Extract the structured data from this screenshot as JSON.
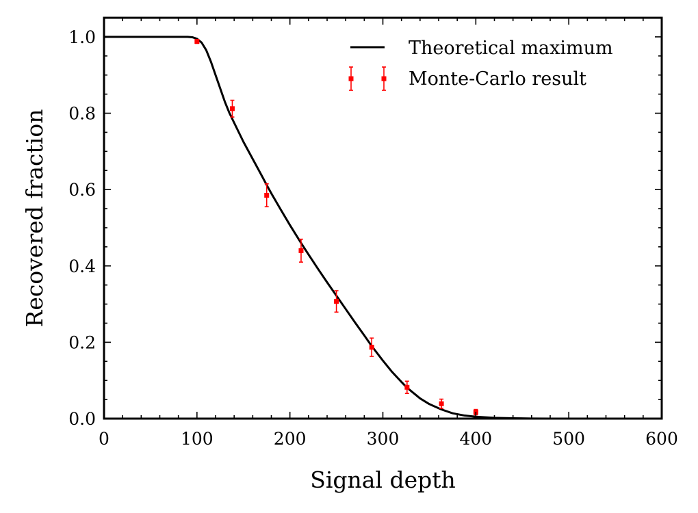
{
  "chart_data": {
    "type": "line",
    "title": "",
    "xlabel": "Signal depth",
    "ylabel": "Recovered fraction",
    "xlim": [
      0,
      600
    ],
    "ylim": [
      0,
      1.05
    ],
    "x_ticks": [
      0,
      100,
      200,
      300,
      400,
      500,
      600
    ],
    "x_tick_labels": [
      "0",
      "100",
      "200",
      "300",
      "400",
      "500",
      "600"
    ],
    "y_ticks": [
      0.0,
      0.2,
      0.4,
      0.6,
      0.8,
      1.0
    ],
    "y_tick_labels": [
      "0.0",
      "0.2",
      "0.4",
      "0.6",
      "0.8",
      "1.0"
    ],
    "grid": false,
    "legend_position": "top-right",
    "series": [
      {
        "name": "Theoretical maximum",
        "kind": "line",
        "color": "#000000",
        "x": [
          0,
          50,
          90,
          95,
          100,
          105,
          110,
          115,
          120,
          125,
          130,
          135,
          140,
          150,
          160,
          170,
          175,
          180,
          190,
          200,
          212,
          220,
          230,
          240,
          250,
          260,
          270,
          280,
          288,
          300,
          310,
          320,
          326,
          340,
          350,
          363,
          375,
          388,
          400,
          420,
          440,
          460,
          480,
          500,
          550,
          600
        ],
        "y": [
          1.0,
          1.0,
          1.0,
          0.999,
          0.995,
          0.985,
          0.965,
          0.935,
          0.9,
          0.865,
          0.83,
          0.8,
          0.775,
          0.725,
          0.68,
          0.635,
          0.612,
          0.59,
          0.548,
          0.507,
          0.46,
          0.43,
          0.393,
          0.357,
          0.322,
          0.287,
          0.252,
          0.218,
          0.19,
          0.152,
          0.122,
          0.096,
          0.081,
          0.053,
          0.038,
          0.024,
          0.014,
          0.008,
          0.005,
          0.002,
          0.0008,
          0.0003,
          0.0001,
          0.0,
          0.0,
          0.0
        ]
      },
      {
        "name": "Monte-Carlo result",
        "kind": "errorbar",
        "color": "#ff0000",
        "x": [
          100,
          138,
          175,
          212,
          250,
          288,
          326,
          363,
          400
        ],
        "y": [
          0.988,
          0.812,
          0.585,
          0.44,
          0.307,
          0.187,
          0.082,
          0.039,
          0.017
        ],
        "yerr": [
          0.005,
          0.022,
          0.03,
          0.03,
          0.028,
          0.024,
          0.016,
          0.012,
          0.007
        ]
      }
    ]
  }
}
